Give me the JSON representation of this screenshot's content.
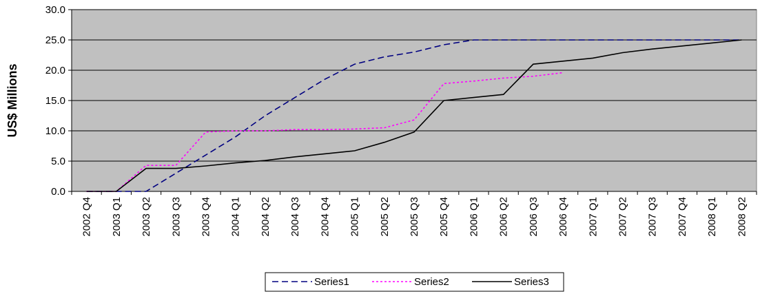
{
  "chart_data": {
    "type": "line",
    "title": "",
    "xlabel": "",
    "ylabel": "US$ Millions",
    "ylim": [
      0,
      30
    ],
    "yticks": [
      "0.0",
      "5.0",
      "10.0",
      "15.0",
      "20.0",
      "25.0",
      "30.0"
    ],
    "grid": true,
    "legend_position": "bottom",
    "categories": [
      "2002 Q4",
      "2003 Q1",
      "2003 Q2",
      "2003 Q3",
      "2003 Q4",
      "2004 Q1",
      "2004 Q2",
      "2004 Q3",
      "2004 Q4",
      "2005 Q1",
      "2005 Q2",
      "2005 Q3",
      "2005 Q4",
      "2006 Q1",
      "2006 Q2",
      "2006 Q3",
      "2006 Q4",
      "2007 Q1",
      "2007 Q2",
      "2007 Q3",
      "2007 Q4",
      "2008 Q1",
      "2008 Q2"
    ],
    "series": [
      {
        "name": "Series1",
        "color": "#000080",
        "style": "dashed",
        "values": [
          0.0,
          0.0,
          0.0,
          3.0,
          6.0,
          9.0,
          12.5,
          15.5,
          18.5,
          21.0,
          22.2,
          23.0,
          24.2,
          25.0,
          25.0,
          25.0,
          25.0,
          25.0,
          25.0,
          25.0,
          25.0,
          25.0,
          25.0
        ]
      },
      {
        "name": "Series2",
        "color": "#FF00FF",
        "style": "dotted",
        "values": [
          0.0,
          0.0,
          4.3,
          4.3,
          9.8,
          10.0,
          10.0,
          10.2,
          10.2,
          10.3,
          10.5,
          11.8,
          17.8,
          18.2,
          18.7,
          19.0,
          19.6,
          null,
          null,
          null,
          null,
          null,
          null
        ]
      },
      {
        "name": "Series3",
        "color": "#000000",
        "style": "solid",
        "values": [
          0.0,
          0.0,
          3.8,
          3.8,
          4.2,
          4.7,
          5.1,
          5.7,
          6.2,
          6.7,
          8.1,
          9.8,
          15.0,
          15.5,
          16.0,
          21.0,
          21.5,
          22.0,
          22.9,
          23.5,
          24.0,
          24.5,
          25.0
        ]
      }
    ]
  },
  "colors": {
    "plot_background": "#C0C0C0",
    "gridline": "#000000"
  }
}
